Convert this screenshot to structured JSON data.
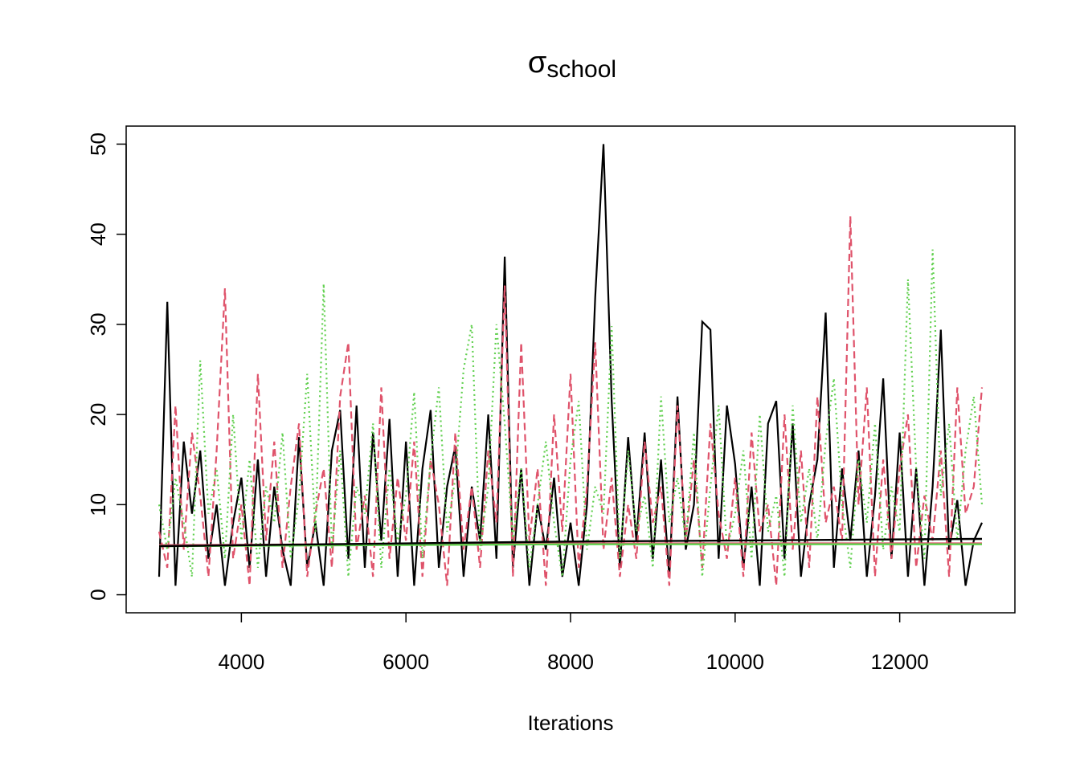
{
  "chart_data": {
    "type": "line",
    "title": "σ",
    "title_subscript": "school",
    "xlabel": "Iterations",
    "xlim": [
      2600,
      13400
    ],
    "xticks": [
      4000,
      6000,
      8000,
      10000,
      12000
    ],
    "ylim": [
      -2,
      52
    ],
    "yticks": [
      0,
      10,
      20,
      30,
      40,
      50
    ],
    "x": [
      3000,
      3100,
      3200,
      3300,
      3400,
      3500,
      3600,
      3700,
      3800,
      3900,
      4000,
      4100,
      4200,
      4300,
      4400,
      4500,
      4600,
      4700,
      4800,
      4900,
      5000,
      5100,
      5200,
      5300,
      5400,
      5500,
      5600,
      5700,
      5800,
      5900,
      6000,
      6100,
      6200,
      6300,
      6400,
      6500,
      6600,
      6700,
      6800,
      6900,
      7000,
      7100,
      7200,
      7300,
      7400,
      7500,
      7600,
      7700,
      7800,
      7900,
      8000,
      8100,
      8200,
      8300,
      8400,
      8500,
      8600,
      8700,
      8800,
      8900,
      9000,
      9100,
      9200,
      9300,
      9400,
      9500,
      9600,
      9700,
      9800,
      9900,
      10000,
      10100,
      10200,
      10300,
      10400,
      10500,
      10600,
      10700,
      10800,
      10900,
      11000,
      11100,
      11200,
      11300,
      11400,
      11500,
      11600,
      11700,
      11800,
      11900,
      12000,
      12100,
      12200,
      12300,
      12400,
      12500,
      12600,
      12700,
      12800,
      12900,
      13000
    ],
    "series": [
      {
        "color": "#000000",
        "dash": "solid",
        "values": [
          2,
          32.5,
          1,
          17,
          9,
          16,
          4,
          10,
          1,
          8,
          13,
          3,
          15,
          2,
          12,
          5,
          1,
          17.5,
          3,
          8,
          1,
          16,
          20.5,
          4,
          21,
          3,
          18,
          6,
          19.5,
          2,
          17,
          1,
          14,
          20.5,
          3,
          12,
          16.5,
          2,
          12,
          6,
          20,
          4,
          37.5,
          3,
          14,
          1,
          10,
          5,
          13,
          2,
          8,
          1,
          10,
          33,
          50,
          21.5,
          3,
          17.5,
          6,
          18,
          4,
          15,
          2,
          22,
          5,
          10,
          30.3,
          29.4,
          4,
          21,
          14.5,
          3,
          12,
          1,
          19,
          21.5,
          4,
          19,
          2,
          10,
          15,
          31.3,
          3,
          14,
          6,
          16,
          2,
          11,
          24,
          4,
          18,
          2,
          14,
          1,
          12,
          29.4,
          5,
          10.5,
          1,
          6,
          8
        ]
      },
      {
        "color": "#DF536B",
        "dash": "dashed",
        "values": [
          7,
          3,
          21,
          5,
          18,
          11,
          2,
          16,
          34,
          4,
          10,
          1,
          24.5,
          6,
          17,
          3,
          12,
          19,
          2,
          9,
          14,
          3,
          22,
          28,
          5,
          11,
          2,
          23,
          4,
          13,
          6,
          17,
          2,
          15,
          10,
          1,
          18,
          5,
          12,
          3,
          16,
          8,
          34.3,
          2,
          28,
          6,
          14,
          1,
          20,
          7,
          24.5,
          3,
          12,
          28,
          5,
          13,
          2,
          10,
          4,
          17,
          8,
          12,
          1,
          21,
          6,
          15,
          3,
          19,
          9,
          4,
          13,
          2,
          18,
          7,
          10,
          1,
          20,
          5,
          16,
          3,
          22,
          8,
          12,
          6,
          42,
          10,
          23,
          2,
          15,
          4,
          14,
          20,
          3,
          11,
          6,
          16,
          2,
          23,
          9,
          12,
          23
        ]
      },
      {
        "color": "#61D04F",
        "dash": "dotted",
        "values": [
          10,
          5,
          13,
          8,
          2,
          26,
          9,
          14,
          4,
          20,
          6,
          15,
          3,
          12,
          8,
          18,
          4,
          11,
          24.5,
          7,
          34.5,
          5,
          16,
          2,
          12,
          9,
          19,
          3,
          14,
          6,
          11,
          22.5,
          4,
          15,
          23,
          7,
          13,
          25,
          30,
          5,
          12,
          30,
          19,
          6,
          14,
          3,
          10,
          17,
          8,
          2,
          15,
          21.5,
          5,
          12,
          9,
          29.8,
          4,
          16,
          7,
          11,
          3,
          22,
          8,
          13,
          6,
          18,
          2,
          12,
          21,
          5,
          9,
          16,
          4,
          20,
          7,
          11,
          2,
          21,
          8,
          14,
          6,
          17,
          24,
          10,
          3,
          15,
          8,
          19,
          5,
          12,
          7,
          35,
          14,
          4,
          38.3,
          11,
          19,
          6,
          16,
          22,
          10
        ]
      }
    ],
    "smooth": [
      {
        "color": "#DF536B",
        "x": [
          3000,
          8000,
          13000
        ],
        "values": [
          5.5,
          5.7,
          5.7
        ]
      },
      {
        "color": "#61D04F",
        "x": [
          3000,
          8000,
          13000
        ],
        "values": [
          5.4,
          5.6,
          5.6
        ]
      },
      {
        "color": "#000000",
        "x": [
          3000,
          8000,
          13000
        ],
        "values": [
          5.4,
          5.9,
          6.2
        ]
      }
    ]
  }
}
